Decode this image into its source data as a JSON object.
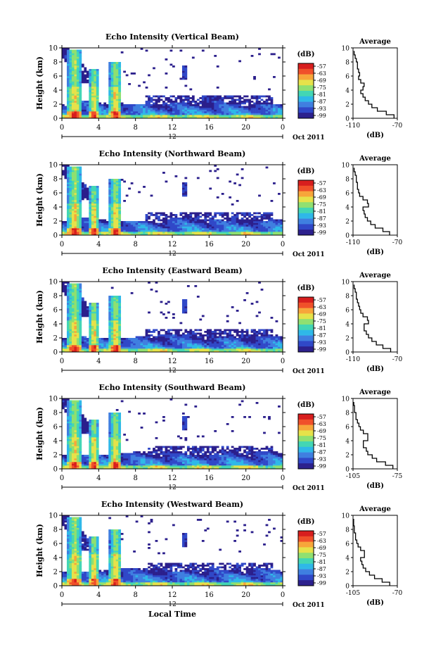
{
  "figure": {
    "x_axis_label": "Local Time",
    "date_label": "Oct 2011",
    "colorbar_unit": "(dB)",
    "avg_title": "Average",
    "avg_xlabel": "(dB)"
  },
  "chart_data": [
    {
      "type": "heatmap",
      "title": "Echo Intensity (Vertical Beam)",
      "xlabel": "",
      "ylabel": "Height (km)",
      "xlim": [
        0,
        24
      ],
      "ylim": [
        0,
        10
      ],
      "xticks": [
        "0",
        "4",
        "8",
        "12",
        "16",
        "20",
        "0"
      ],
      "yticks": [
        "0",
        "2",
        "4",
        "6",
        "8",
        "10"
      ],
      "date_tick": "12",
      "colorbar_ticks": [
        "-57",
        "-63",
        "-69",
        "-75",
        "-81",
        "-87",
        "-93",
        "-99"
      ],
      "average_profile": {
        "xlim": [
          -110,
          -70
        ],
        "xticks": [
          "-110",
          "-70"
        ],
        "heights": [
          0,
          0.5,
          1,
          1.5,
          2,
          2.5,
          3,
          3.5,
          4,
          4.5,
          5,
          5.5,
          6,
          6.5,
          7,
          7.5,
          8,
          8.5,
          9,
          9.5
        ],
        "values": [
          -73,
          -80,
          -88,
          -93,
          -96,
          -99,
          -101,
          -103,
          -101,
          -100,
          -103,
          -105,
          -104,
          -105,
          -106,
          -106,
          -107,
          -108,
          -109,
          -110
        ]
      }
    },
    {
      "type": "heatmap",
      "title": "Echo Intensity (Northward Beam)",
      "xlabel": "",
      "ylabel": "Height (km)",
      "xlim": [
        0,
        24
      ],
      "ylim": [
        0,
        10
      ],
      "xticks": [
        "0",
        "4",
        "8",
        "12",
        "16",
        "20",
        "0"
      ],
      "yticks": [
        "0",
        "2",
        "4",
        "6",
        "8",
        "10"
      ],
      "date_tick": "12",
      "colorbar_ticks": [
        "-57",
        "-63",
        "-69",
        "-75",
        "-81",
        "-87",
        "-93",
        "-99"
      ],
      "average_profile": {
        "xlim": [
          -110,
          -70
        ],
        "xticks": [
          "-110",
          "-70"
        ],
        "heights": [
          0,
          0.5,
          1,
          1.5,
          2,
          2.5,
          3,
          3.5,
          4,
          4.5,
          5,
          5.5,
          6,
          6.5,
          7,
          7.5,
          8,
          8.5,
          9,
          9.5
        ],
        "values": [
          -77,
          -83,
          -90,
          -94,
          -97,
          -99,
          -100,
          -101,
          -96,
          -97,
          -101,
          -104,
          -105,
          -106,
          -106,
          -107,
          -107,
          -108,
          -109,
          -110
        ]
      }
    },
    {
      "type": "heatmap",
      "title": "Echo Intensity (Eastward Beam)",
      "xlabel": "",
      "ylabel": "Height (km)",
      "xlim": [
        0,
        24
      ],
      "ylim": [
        0,
        10
      ],
      "xticks": [
        "0",
        "4",
        "8",
        "12",
        "16",
        "20",
        "0"
      ],
      "yticks": [
        "0",
        "2",
        "4",
        "6",
        "8",
        "10"
      ],
      "date_tick": "12",
      "colorbar_ticks": [
        "-57",
        "-63",
        "-69",
        "-75",
        "-81",
        "-87",
        "-93",
        "-99"
      ],
      "average_profile": {
        "xlim": [
          -110,
          -70
        ],
        "xticks": [
          "-110",
          "-70"
        ],
        "heights": [
          0,
          0.5,
          1,
          1.5,
          2,
          2.5,
          3,
          3.5,
          4,
          4.5,
          5,
          5.5,
          6,
          6.5,
          7,
          7.5,
          8,
          8.5,
          9,
          9.5
        ],
        "values": [
          -76,
          -83,
          -89,
          -93,
          -96,
          -98,
          -100,
          -100,
          -96,
          -97,
          -101,
          -103,
          -104,
          -105,
          -106,
          -107,
          -107,
          -108,
          -109,
          -110
        ]
      }
    },
    {
      "type": "heatmap",
      "title": "Echo Intensity (Southward Beam)",
      "xlabel": "",
      "ylabel": "Height (km)",
      "xlim": [
        0,
        24
      ],
      "ylim": [
        0,
        10
      ],
      "xticks": [
        "0",
        "4",
        "8",
        "12",
        "16",
        "20",
        "0"
      ],
      "yticks": [
        "0",
        "2",
        "4",
        "6",
        "8",
        "10"
      ],
      "date_tick": "12",
      "colorbar_ticks": [
        "-57",
        "-63",
        "-69",
        "-75",
        "-81",
        "-87",
        "-93",
        "-99"
      ],
      "average_profile": {
        "xlim": [
          -105,
          -75
        ],
        "xticks": [
          "-105",
          "-75"
        ],
        "heights": [
          0,
          0.5,
          1,
          1.5,
          2,
          2.5,
          3,
          3.5,
          4,
          4.5,
          5,
          5.5,
          6,
          6.5,
          7,
          7.5,
          8,
          8.5,
          9,
          9.5
        ],
        "values": [
          -78,
          -83,
          -89,
          -92,
          -95,
          -96,
          -98,
          -98,
          -95,
          -95,
          -98,
          -100,
          -101,
          -102,
          -103,
          -103,
          -104,
          -104,
          -105,
          -105
        ]
      }
    },
    {
      "type": "heatmap",
      "title": "Echo Intensity (Westward Beam)",
      "xlabel": "Local Time",
      "ylabel": "Height (km)",
      "xlim": [
        0,
        24
      ],
      "ylim": [
        0,
        10
      ],
      "xticks": [
        "0",
        "4",
        "8",
        "12",
        "16",
        "20",
        "0"
      ],
      "yticks": [
        "0",
        "2",
        "4",
        "6",
        "8",
        "10"
      ],
      "date_tick": "12",
      "colorbar_ticks": [
        "-57",
        "-63",
        "-69",
        "-75",
        "-81",
        "-87",
        "-93",
        "-99"
      ],
      "average_profile": {
        "xlim": [
          -105,
          -70
        ],
        "xticks": [
          "-105",
          "-70"
        ],
        "heights": [
          0,
          0.5,
          1,
          1.5,
          2,
          2.5,
          3,
          3.5,
          4,
          4.5,
          5,
          5.5,
          6,
          6.5,
          7,
          7.5,
          8,
          8.5,
          9,
          9.5
        ],
        "values": [
          -76,
          -82,
          -88,
          -92,
          -95,
          -97,
          -98,
          -99,
          -96,
          -96,
          -99,
          -101,
          -102,
          -103,
          -103,
          -104,
          -104,
          -105,
          -105,
          -105
        ]
      }
    }
  ],
  "colors": {
    "colormap": [
      "#2b1f8c",
      "#3048c8",
      "#3f7fe0",
      "#2fb8e8",
      "#43d6b4",
      "#8fe070",
      "#e6e24a",
      "#f7a63a",
      "#f0502a",
      "#d81e1e"
    ],
    "background": "#ffffff",
    "axis": "#000000"
  }
}
